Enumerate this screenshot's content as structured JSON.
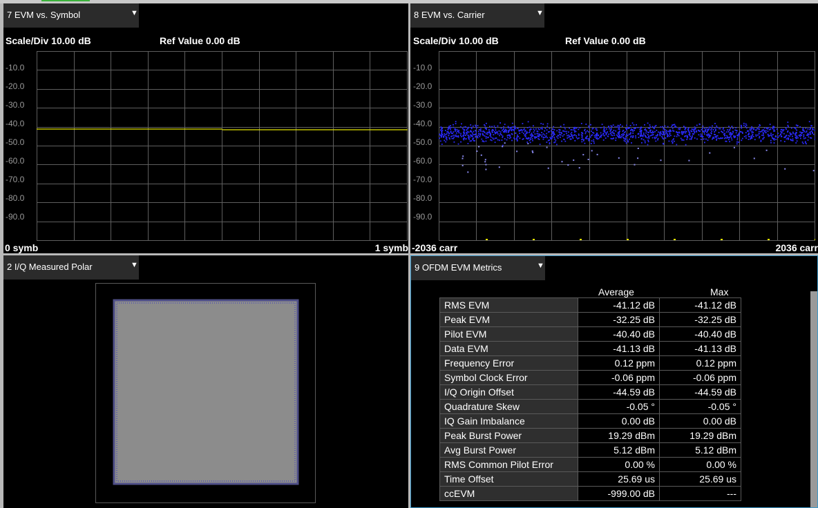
{
  "panes": {
    "evm_symbol": {
      "title": "7 EVM vs. Symbol",
      "scale": "Scale/Div 10.00 dB",
      "ref": "Ref Value 0.00 dB",
      "x_left": "0 symb",
      "x_right": "1 symb"
    },
    "evm_carrier": {
      "title": "8 EVM vs. Carrier",
      "scale": "Scale/Div 10.00 dB",
      "ref": "Ref Value 0.00 dB",
      "x_left": "-2036 carr",
      "x_right": "2036 carr"
    },
    "polar": {
      "title": "2 I/Q Measured Polar"
    },
    "metrics": {
      "title": "9 OFDM EVM Metrics",
      "col_avg": "Average",
      "col_max": "Max",
      "rows": [
        {
          "label": "RMS EVM",
          "avg": "-41.12 dB",
          "max": "-41.12 dB"
        },
        {
          "label": "Peak EVM",
          "avg": "-32.25 dB",
          "max": "-32.25 dB"
        },
        {
          "label": "Pilot EVM",
          "avg": "-40.40 dB",
          "max": "-40.40 dB"
        },
        {
          "label": "Data EVM",
          "avg": "-41.13 dB",
          "max": "-41.13 dB"
        },
        {
          "label": "Frequency Error",
          "avg": "0.12 ppm",
          "max": "0.12 ppm"
        },
        {
          "label": "Symbol Clock Error",
          "avg": "-0.06 ppm",
          "max": "-0.06 ppm"
        },
        {
          "label": "I/Q Origin Offset",
          "avg": "-44.59 dB",
          "max": "-44.59 dB"
        },
        {
          "label": "Quadrature Skew",
          "avg": "-0.05 °",
          "max": "-0.05 °"
        },
        {
          "label": "IQ Gain Imbalance",
          "avg": "0.00 dB",
          "max": "0.00 dB"
        },
        {
          "label": "Peak Burst Power",
          "avg": "19.29 dBm",
          "max": "19.29 dBm"
        },
        {
          "label": "Avg Burst Power",
          "avg": "5.12 dBm",
          "max": "5.12 dBm"
        },
        {
          "label": "RMS Common Pilot Error",
          "avg": "0.00 %",
          "max": "0.00 %"
        },
        {
          "label": "Time Offset",
          "avg": "25.69 us",
          "max": "25.69 us"
        },
        {
          "label": "ccEVM",
          "avg": "-999.00 dB",
          "max": "---"
        }
      ]
    }
  },
  "y_ticks": [
    "-10.0",
    "-20.0",
    "-30.0",
    "-40.0",
    "-50.0",
    "-60.0",
    "-70.0",
    "-80.0",
    "-90.0"
  ],
  "icons": {
    "dropdown": "dropdown-arrow-icon"
  },
  "colors": {
    "trace_symbol": "#e6e600",
    "trace_carrier": "#2a2aff",
    "pilot_markers": "#e6e600",
    "grid": "#5f5f5f",
    "active_border": "#3c98c9",
    "constellation_fill": "#8c8c8c"
  },
  "chart_data": [
    {
      "type": "line",
      "title": "7 EVM vs. Symbol",
      "ylim": [
        -100,
        0
      ],
      "x_labels": [
        "0 symb",
        "1 symb"
      ],
      "series": [
        {
          "values": [
            -41.1,
            -41.1
          ]
        }
      ]
    },
    {
      "type": "scatter",
      "title": "8 EVM vs. Carrier",
      "ylim": [
        -100,
        0
      ],
      "xlim": [
        -2036,
        2036
      ],
      "x_labels": [
        "-2036 carr",
        "2036 carr"
      ],
      "series": [
        {
          "values_range": [
            -35,
            -65
          ]
        }
      ],
      "pilot_markers_y": -100
    }
  ]
}
